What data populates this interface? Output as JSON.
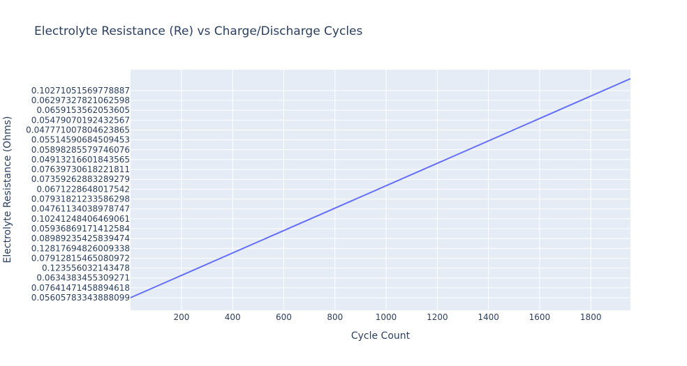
{
  "chart_data": {
    "type": "line",
    "title": "Electrolyte Resistance (Re) vs Charge/Discharge Cycles",
    "xlabel": "Cycle Count",
    "ylabel": "Electrolyte Resistance (Ohms)",
    "x_axis": {
      "range": [
        1,
        1955
      ],
      "ticks": [
        200,
        400,
        600,
        800,
        1000,
        1200,
        1400,
        1600,
        1800
      ]
    },
    "y_axis": {
      "type": "category",
      "categories": [
        "0.05605783343888099",
        "0.07641471458894618",
        "0.0634383455309271",
        "0.123556032143478",
        "0.07912815465080972",
        "0.12817694826009338",
        "0.08989235425839474",
        "0.05936869171412584",
        "0.10241248406469061",
        "0.04761134038978747",
        "0.07931821233586298",
        "0.0671228648017542",
        "0.07359262883289279",
        "0.07639730618221811",
        "0.04913216601843565",
        "0.05898285579746076",
        "0.05514590684509453",
        "0.047771007804623865",
        "0.05479070192432567",
        "0.0659153562053605",
        "0.06297327821062598",
        "0.10271051569778887"
      ]
    },
    "series": [
      {
        "x": [
          1,
          1955
        ],
        "y_category_index": [
          0,
          22.2
        ],
        "color": "#636efa"
      }
    ],
    "colors": {
      "plot_bg": "#e5ecf6",
      "grid": "#ffffff",
      "text": "#2a3f5f"
    }
  }
}
